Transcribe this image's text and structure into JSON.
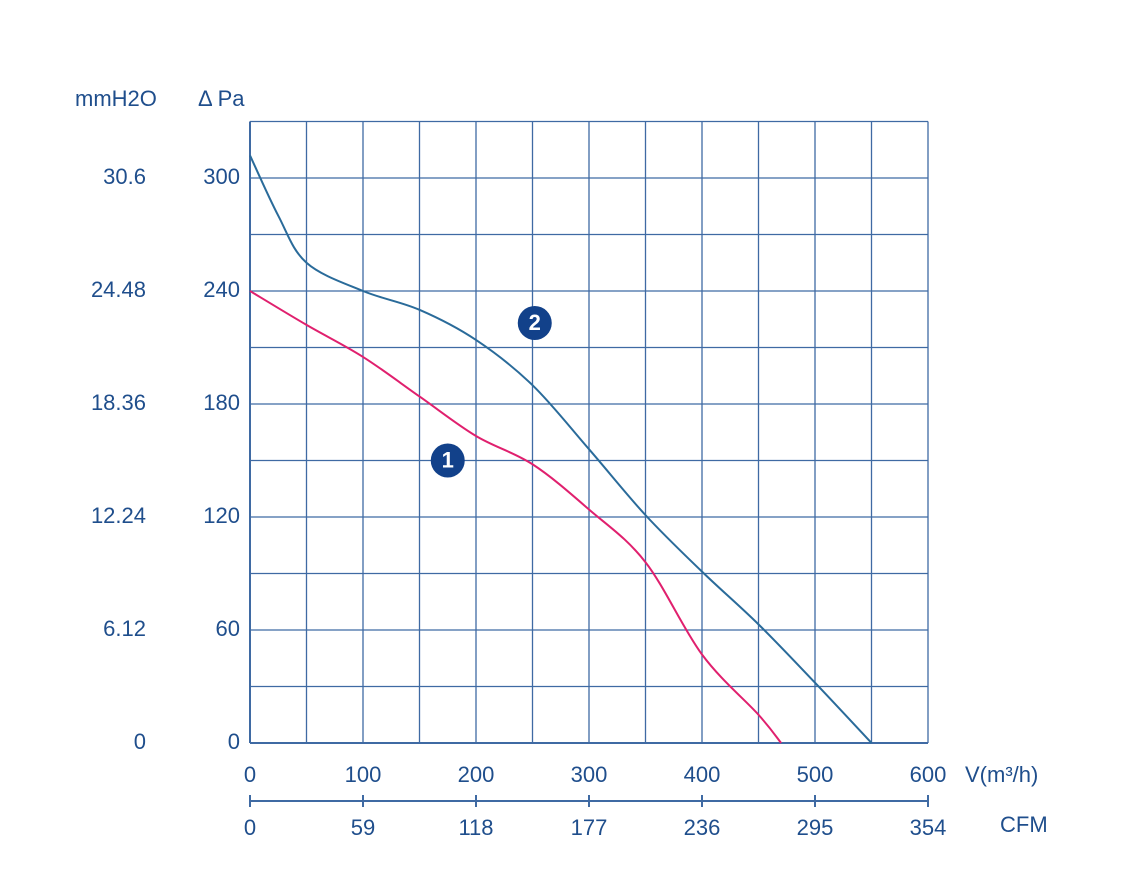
{
  "chart_data": {
    "type": "line",
    "y_label": "Δ Pa",
    "y2_label": "mmH2O",
    "x_label": "V(m³/h)",
    "x2_label": "CFM",
    "xlim": [
      0,
      600
    ],
    "xticks": [
      0,
      100,
      200,
      300,
      400,
      500,
      600
    ],
    "x_minor_ticks": [
      50,
      150,
      250,
      350,
      450,
      550
    ],
    "ylim": [
      0,
      330
    ],
    "yticks": [
      0,
      60,
      120,
      180,
      240,
      300
    ],
    "y_minor_ticks": [
      30,
      90,
      150,
      210,
      270,
      330
    ],
    "y2lim": [
      0,
      33.66
    ],
    "y2ticks": [
      0,
      6.12,
      12.24,
      18.36,
      24.48,
      30.6
    ],
    "x2lim": [
      0,
      354
    ],
    "x2ticks": [
      0,
      59,
      118,
      177,
      236,
      295,
      354
    ],
    "grid": true,
    "series": [
      {
        "name": "1",
        "color": "#e0206e",
        "x": [
          0,
          50,
          100,
          150,
          200,
          250,
          300,
          350,
          400,
          450,
          470
        ],
        "values": [
          240,
          222,
          205,
          184,
          163,
          148,
          124,
          96,
          47,
          15,
          0
        ],
        "label_at": [
          175,
          150
        ]
      },
      {
        "name": "2",
        "color": "#2a6b9a",
        "x": [
          0,
          25,
          50,
          100,
          150,
          200,
          250,
          300,
          350,
          400,
          450,
          500,
          550
        ],
        "values": [
          312,
          280,
          255,
          240,
          230,
          214,
          190,
          156,
          121,
          91,
          63,
          32,
          0
        ],
        "label_at": [
          252,
          223
        ]
      }
    ]
  }
}
